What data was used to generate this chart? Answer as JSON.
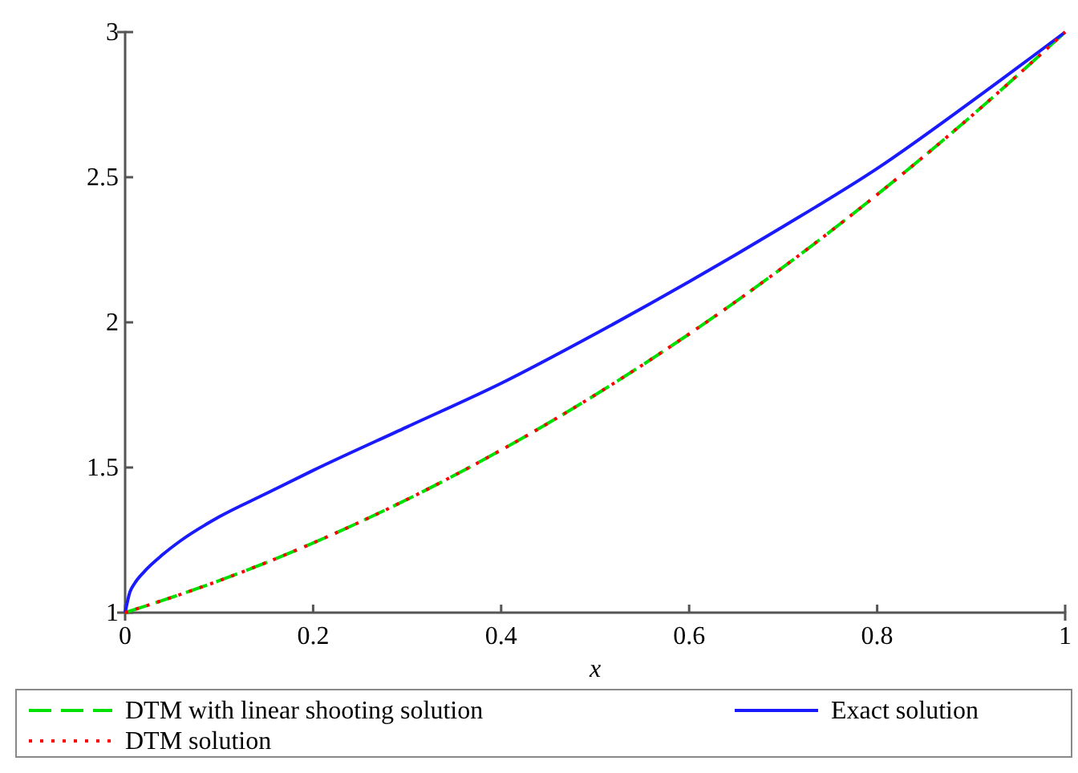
{
  "chart_data": {
    "type": "line",
    "xlabel": "x",
    "xlim": [
      0,
      1
    ],
    "ylim": [
      1,
      3
    ],
    "xticks": [
      0,
      0.2,
      0.4,
      0.6,
      0.8,
      1
    ],
    "yticks": [
      1,
      1.5,
      2,
      2.5,
      3
    ],
    "grid": false,
    "legend": "bottom",
    "series": [
      {
        "name": "DTM with linear shooting solution",
        "color": "#00e000",
        "line_style": "dashed",
        "x": [
          0,
          0.1,
          0.2,
          0.3,
          0.4,
          0.5,
          0.6,
          0.7,
          0.8,
          0.9,
          1
        ],
        "values": [
          1,
          1.11,
          1.24,
          1.39,
          1.56,
          1.75,
          1.96,
          2.19,
          2.44,
          2.71,
          3
        ]
      },
      {
        "name": "Exact solution",
        "color": "#1a1aff",
        "line_style": "solid",
        "x": [
          0,
          0.005,
          0.01,
          0.02,
          0.04,
          0.06,
          0.1,
          0.15,
          0.2,
          0.3,
          0.4,
          0.5,
          0.6,
          0.7,
          0.8,
          0.9,
          1
        ],
        "values": [
          1,
          1.07,
          1.1,
          1.14,
          1.2,
          1.25,
          1.33,
          1.41,
          1.49,
          1.64,
          1.79,
          1.96,
          2.14,
          2.33,
          2.53,
          2.76,
          3
        ]
      },
      {
        "name": "DTM solution",
        "color": "#ff0000",
        "line_style": "dotted",
        "x": [
          0,
          0.1,
          0.2,
          0.3,
          0.4,
          0.5,
          0.6,
          0.7,
          0.8,
          0.9,
          1
        ],
        "values": [
          1,
          1.11,
          1.24,
          1.39,
          1.56,
          1.75,
          1.96,
          2.19,
          2.44,
          2.71,
          3
        ]
      }
    ]
  }
}
